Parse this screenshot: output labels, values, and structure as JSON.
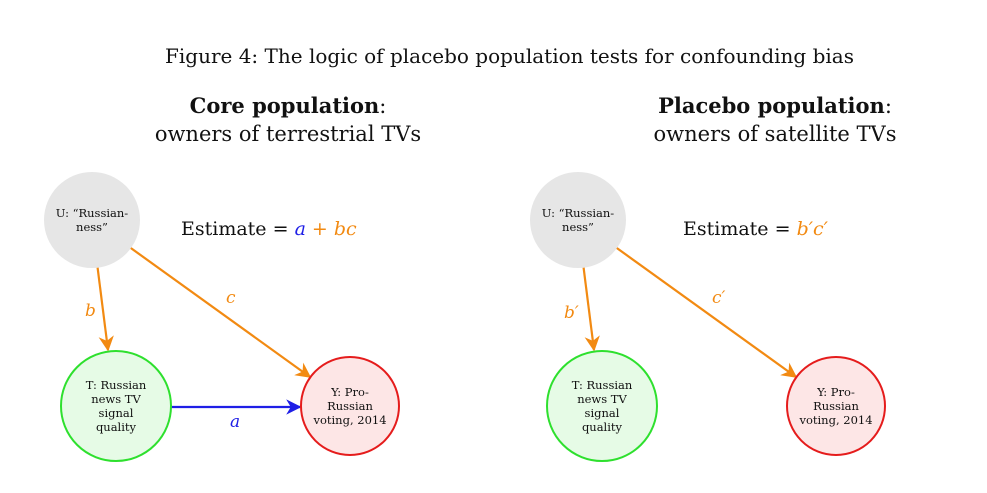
{
  "figure": {
    "title": "Figure 4: The logic of placebo population tests for confounding bias"
  },
  "panels": {
    "core": {
      "heading_bold": "Core population",
      "heading_colon": ":",
      "subheading": "owners of terrestrial TVs",
      "estimate_prefix": "Estimate = ",
      "estimate_a": "a",
      "estimate_plus": " + ",
      "estimate_bc": "bc",
      "nodes": {
        "u": [
          "U: “Russian-",
          "ness”"
        ],
        "t": [
          "T: Russian",
          "news TV",
          "signal",
          "quality"
        ],
        "y": [
          "Y: Pro-",
          "Russian",
          "voting, 2014"
        ]
      },
      "edges": {
        "b": "b",
        "c": "c",
        "a": "a"
      }
    },
    "placebo": {
      "heading_bold": "Placebo population",
      "heading_colon": ":",
      "subheading": "owners of satellite TVs",
      "estimate_prefix": "Estimate = ",
      "estimate_bc": "b′c′",
      "nodes": {
        "u": [
          "U: “Russian-",
          "ness”"
        ],
        "t": [
          "T: Russian",
          "news TV",
          "signal",
          "quality"
        ],
        "y": [
          "Y: Pro-",
          "Russian",
          "voting, 2014"
        ]
      },
      "edges": {
        "b": "b′",
        "c": "c′"
      }
    }
  },
  "colors": {
    "orange": "#f28a12",
    "blue": "#1f1fe6",
    "green_border": "#2ee02e",
    "red_border": "#e51c1c",
    "gray_fill": "#e6e6e6"
  }
}
